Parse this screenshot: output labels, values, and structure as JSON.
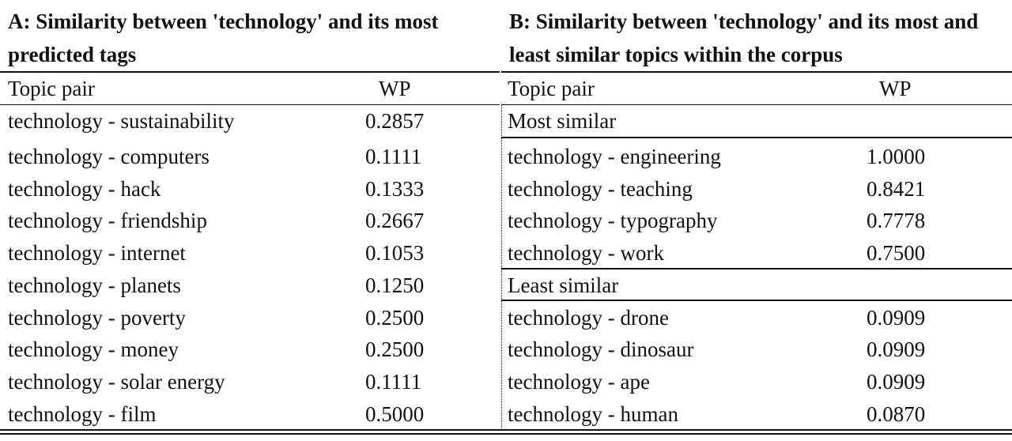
{
  "panel_a": {
    "title_line1": "A: Similarity between 'technology' and its most",
    "title_line2": "predicted tags",
    "col_pair": "Topic pair",
    "col_wp": "WP",
    "rows": [
      {
        "pair": "technology - sustainability",
        "wp": "0.2857"
      },
      {
        "pair": "technology - computers",
        "wp": "0.1111"
      },
      {
        "pair": "technology - hack",
        "wp": "0.1333"
      },
      {
        "pair": "technology - friendship",
        "wp": "0.2667"
      },
      {
        "pair": "technology - internet",
        "wp": "0.1053"
      },
      {
        "pair": "technology - planets",
        "wp": "0.1250"
      },
      {
        "pair": "technology - poverty",
        "wp": "0.2500"
      },
      {
        "pair": "technology - money",
        "wp": "0.2500"
      },
      {
        "pair": "technology - solar energy",
        "wp": "0.1111"
      },
      {
        "pair": "technology - film",
        "wp": "0.5000"
      }
    ]
  },
  "panel_b": {
    "title_line1": "B: Similarity between 'technology' and its most and",
    "title_line2": "least similar topics within the corpus",
    "col_pair": "Topic pair",
    "col_wp": "WP",
    "most_label": "Most similar",
    "most_rows": [
      {
        "pair": "technology - engineering",
        "wp": "1.0000"
      },
      {
        "pair": "technology - teaching",
        "wp": "0.8421"
      },
      {
        "pair": "technology - typography",
        "wp": "0.7778"
      },
      {
        "pair": "technology - work",
        "wp": "0.7500"
      }
    ],
    "least_label": "Least similar",
    "least_rows": [
      {
        "pair": "technology - drone",
        "wp": "0.0909"
      },
      {
        "pair": "technology - dinosaur",
        "wp": "0.0909"
      },
      {
        "pair": "technology - ape",
        "wp": "0.0909"
      },
      {
        "pair": "technology - human",
        "wp": "0.0870"
      }
    ]
  }
}
